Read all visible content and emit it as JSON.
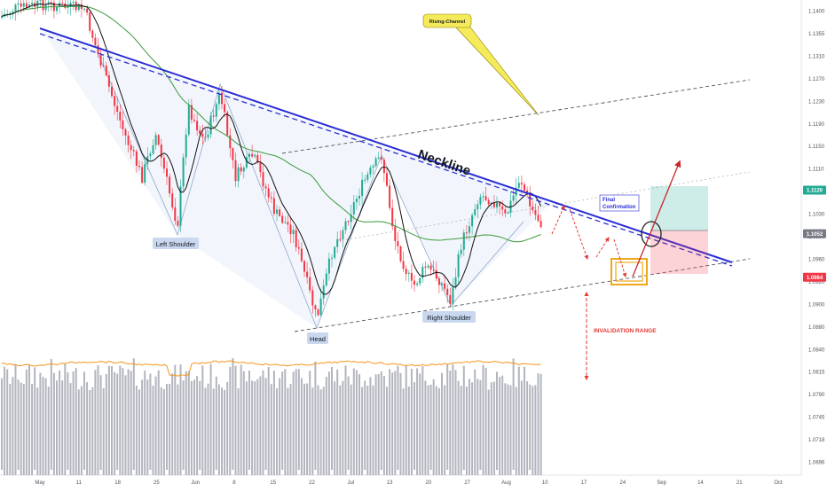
{
  "chart_data": {
    "type": "candlestick",
    "title": "",
    "xlabel": "",
    "ylabel": "",
    "ylim": [
      1.0639,
      1.1485
    ],
    "price_axis": {
      "ticks": [
        "1.1400",
        "1.1355",
        "1.1310",
        "1.1270",
        "1.1230",
        "1.1190",
        "1.1150",
        "1.1110",
        "1.1070",
        "1.1030",
        "1.0990",
        "1.0960",
        "1.0920",
        "1.0900",
        "1.0880",
        "1.0840",
        "1.0815",
        "1.0790",
        "1.0745",
        "1.0718",
        "1.0696"
      ]
    },
    "time_axis": {
      "ticks": [
        "May",
        "11",
        "18",
        "25",
        "Jun",
        "8",
        "15",
        "22",
        "Jul",
        "13",
        "20",
        "27",
        "Aug",
        "10",
        "17",
        "24",
        "Sep",
        "14",
        "21",
        "Oct"
      ]
    },
    "price_tags": [
      {
        "label": "1.1120",
        "value": 1.112,
        "color": "#22ab94"
      },
      {
        "label": "1.1052",
        "value": 1.1052,
        "color": "#787b86"
      },
      {
        "label": "1.0984",
        "value": 1.0984,
        "color": "#f23645"
      }
    ],
    "annotations": {
      "neckline": "Neckline",
      "left_shoulder": "Left Shoulder",
      "head": "Head",
      "right_shoulder": "Right Shoulder",
      "rising_channel": "Rising-Channel",
      "final_confirmation_line1": "Final",
      "final_confirmation_line2": "Confirmation",
      "invalidation_range": "INVALIDATION RANGE"
    },
    "colors": {
      "up": "#22ab94",
      "down": "#f23645",
      "neckline": "#2a2ed6",
      "ma_long": "#3b9a3b",
      "ma_short": "#111111",
      "volume": "#b2b5be",
      "volume_ma": "#f7931a",
      "arrow": "#e53935"
    }
  }
}
